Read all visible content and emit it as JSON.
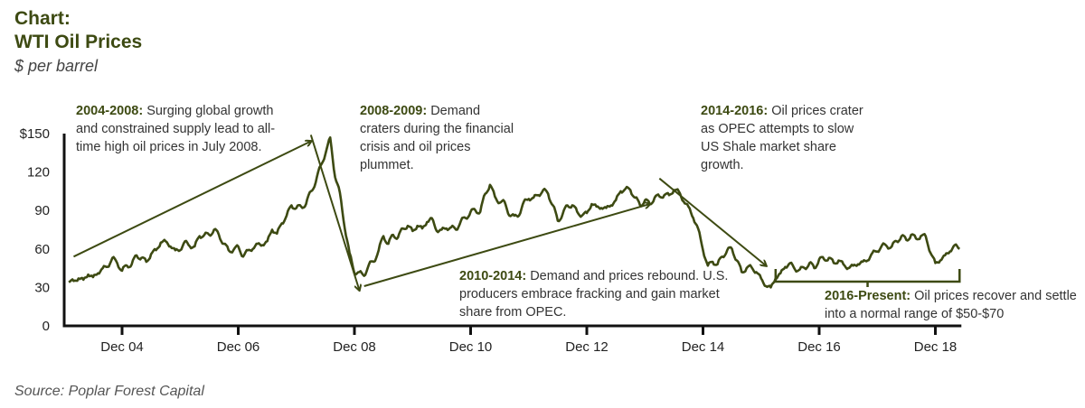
{
  "header": {
    "title_line1": "Chart:",
    "title_line2": "WTI Oil Prices",
    "subtitle": "$ per barrel"
  },
  "source": "Source: Poplar Forest Capital",
  "colors": {
    "line": "#3d4a12",
    "axis": "#111111",
    "accent_text": "#3d4a12"
  },
  "annotations": [
    {
      "id": "a2004",
      "period": "2004-2008:",
      "text": " Surging global growth and constrained supply lead to all-time high oil prices in July 2008."
    },
    {
      "id": "a2008",
      "period": "2008-2009:",
      "text": " Demand craters during the financial crisis and oil prices plummet."
    },
    {
      "id": "a2010",
      "period": "2010-2014:",
      "text": " Demand and prices rebound. U.S. producers embrace fracking and gain market share from OPEC."
    },
    {
      "id": "a2014",
      "period": "2014-2016:",
      "text": " Oil prices crater as OPEC attempts to slow US Shale market share growth."
    },
    {
      "id": "a2016",
      "period": "2016-Present:",
      "text": " Oil prices recover and settle into a normal range of $50-$70"
    }
  ],
  "chart_data": {
    "type": "line",
    "title": "WTI Oil Prices",
    "subtitle": "$ per barrel",
    "xlabel": "",
    "ylabel": "$ per barrel",
    "ylim": [
      0,
      150
    ],
    "xlim": [
      "2003-12",
      "2019-05"
    ],
    "yticks": [
      0,
      30,
      60,
      90,
      120,
      150
    ],
    "ytick_labels": [
      "0",
      "30",
      "60",
      "90",
      "120",
      "$150"
    ],
    "xticks": [
      "2004-12",
      "2006-12",
      "2008-12",
      "2010-12",
      "2012-12",
      "2014-12",
      "2016-12",
      "2018-12"
    ],
    "xtick_labels": [
      "Dec 04",
      "Dec 06",
      "Dec 08",
      "Dec 10",
      "Dec 12",
      "Dec 14",
      "Dec 16",
      "Dec 18"
    ],
    "grid": false,
    "legend": "none",
    "series": [
      {
        "name": "WTI",
        "start": "2004-01",
        "frequency": "monthly",
        "values": [
          34,
          35,
          37,
          36,
          40,
          38,
          41,
          45,
          46,
          53,
          49,
          43,
          47,
          48,
          55,
          53,
          50,
          56,
          59,
          65,
          66,
          62,
          59,
          59,
          66,
          62,
          62,
          70,
          71,
          71,
          75,
          71,
          64,
          59,
          59,
          62,
          54,
          59,
          60,
          64,
          63,
          66,
          75,
          72,
          80,
          86,
          94,
          92,
          93,
          95,
          105,
          112,
          125,
          134,
          147,
          116,
          104,
          76,
          57,
          41,
          42,
          39,
          48,
          50,
          59,
          70,
          64,
          71,
          69,
          76,
          78,
          74,
          78,
          76,
          81,
          84,
          74,
          75,
          76,
          77,
          75,
          82,
          84,
          89,
          90,
          89,
          103,
          110,
          101,
          96,
          97,
          86,
          86,
          86,
          97,
          99,
          100,
          102,
          106,
          103,
          94,
          82,
          87,
          94,
          94,
          89,
          86,
          88,
          95,
          93,
          92,
          92,
          94,
          98,
          105,
          107,
          106,
          100,
          94,
          98,
          95,
          100,
          101,
          102,
          102,
          106,
          105,
          97,
          93,
          84,
          76,
          59,
          47,
          50,
          48,
          54,
          59,
          60,
          51,
          42,
          45,
          46,
          42,
          37,
          31,
          30,
          37,
          41,
          46,
          49,
          44,
          44,
          45,
          49,
          45,
          52,
          52,
          53,
          49,
          51,
          48,
          45,
          47,
          48,
          50,
          51,
          57,
          58,
          63,
          62,
          62,
          66,
          70,
          67,
          71,
          68,
          70,
          70,
          57,
          49,
          51,
          55,
          58,
          63,
          60
        ]
      }
    ],
    "annotation_arrows": [
      {
        "label": "2004-2008",
        "from": [
          "2004-02",
          54
        ],
        "to": [
          "2008-03",
          144
        ]
      },
      {
        "label": "2008-2009",
        "from": [
          "2008-03",
          149
        ],
        "to": [
          "2009-01",
          28
        ]
      },
      {
        "label": "2010-2014",
        "from": [
          "2009-02",
          31
        ],
        "to": [
          "2014-01",
          95
        ]
      },
      {
        "label": "2014-2016",
        "from": [
          "2014-03",
          115
        ],
        "to": [
          "2016-01",
          47
        ]
      }
    ],
    "bracket": {
      "label": "2016-Present",
      "from": "2016-03",
      "to": "2019-05"
    }
  }
}
